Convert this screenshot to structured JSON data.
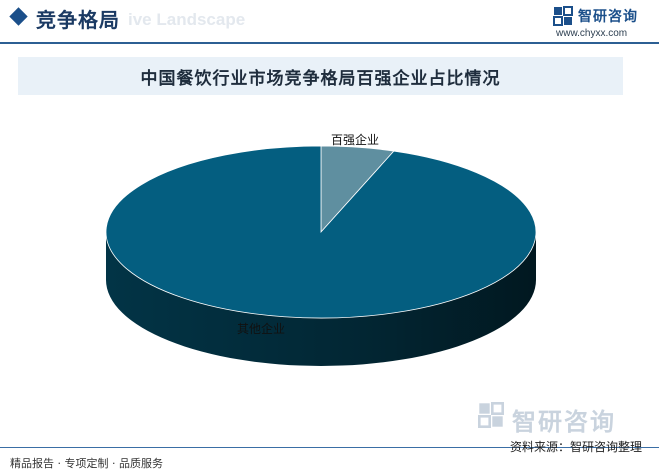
{
  "header": {
    "section_title": "竞争格局",
    "section_subtitle": "ive Landscape",
    "brand_name": "智研咨询",
    "brand_url": "www.chyxx.com"
  },
  "chart_data": {
    "type": "pie",
    "title": "中国餐饮行业市场竞争格局百强企业占比情况",
    "slices": [
      {
        "label": "百强企业",
        "value": 5.5,
        "color": "#5f8fa0"
      },
      {
        "label": "其他企业",
        "value": 94.5,
        "color": "#045e80"
      }
    ],
    "three_d": true,
    "labels_placement": "on-slice"
  },
  "footer": {
    "left_text": "精品报告 · 专项定制 · 品质服务",
    "source_text": "资料来源：智研咨询整理",
    "brand_name": "智研咨询"
  }
}
